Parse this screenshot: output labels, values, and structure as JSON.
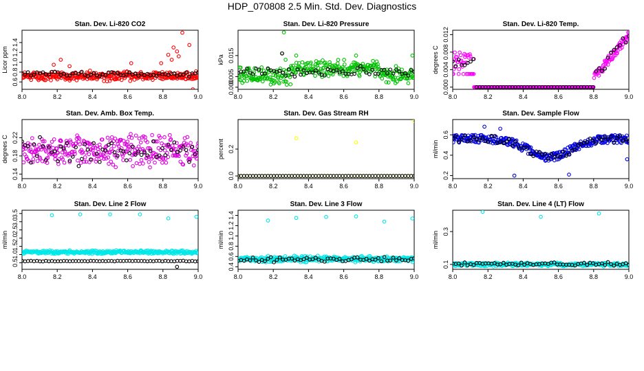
{
  "main_title": "HDP_070808  2.5 Min. Std. Dev. Diagnostics",
  "chart_data": [
    {
      "type": "scatter",
      "title": "Stan. Dev. Li-820 CO2",
      "ylabel": "Licor ppm",
      "xlim": [
        8.0,
        9.0
      ],
      "ylim": [
        0.45,
        1.65
      ],
      "xticks": [
        "8.0",
        "8.2",
        "8.4",
        "8.6",
        "8.8",
        "9.0"
      ],
      "yticks": [
        "0.6",
        "0.8",
        "1.0",
        "1.2",
        "1.4"
      ],
      "color": "#ff0000",
      "series": [
        {
          "name": "colored",
          "gen": {
            "base": 0.72,
            "spread": 0.08,
            "n": 330,
            "seed": 11,
            "outliers": [
              [
                8.22,
                1.05
              ],
              [
                8.83,
                1.15
              ],
              [
                8.86,
                1.3
              ],
              [
                8.88,
                1.22
              ],
              [
                8.91,
                1.6
              ],
              [
                8.95,
                1.35
              ],
              [
                8.79,
                0.98
              ],
              [
                8.85,
                1.05
              ],
              [
                8.89,
                1.12
              ],
              [
                8.97,
                0.45
              ],
              [
                8.18,
                0.95
              ],
              [
                8.62,
                0.98
              ],
              [
                8.27,
                0.92
              ]
            ]
          }
        },
        {
          "name": "black",
          "gen": {
            "base": 0.76,
            "spread": 0.05,
            "n": 60,
            "seed": 12,
            "outliers": []
          }
        }
      ]
    },
    {
      "type": "scatter",
      "title": "Stan. Dev. Li-820 Pressure",
      "ylabel": "kPa",
      "xlim": [
        8.0,
        9.0
      ],
      "ylim": [
        -0.001,
        0.027
      ],
      "xticks": [
        "8.0",
        "8.2",
        "8.4",
        "8.6",
        "8.8",
        "9.0"
      ],
      "yticks": [
        "0.000",
        "0.005",
        "0.015"
      ],
      "color": "#00c000",
      "series": [
        {
          "name": "colored",
          "gen": {
            "base": 0.0055,
            "spread": 0.0035,
            "n": 330,
            "seed": 21,
            "hump": [
              8.3,
              8.8,
              0.0035
            ],
            "outliers": [
              [
                8.26,
                0.026
              ],
              [
                8.25,
                0.016
              ],
              [
                8.33,
                0.015
              ],
              [
                8.67,
                0.015
              ],
              [
                8.99,
                0.015
              ],
              [
                8.27,
                0.013
              ]
            ]
          }
        },
        {
          "name": "black",
          "gen": {
            "base": 0.0075,
            "spread": 0.002,
            "n": 60,
            "seed": 22,
            "outliers": [
              [
                8.25,
                0.016
              ]
            ]
          }
        }
      ]
    },
    {
      "type": "scatter",
      "title": "Stan. Dev. Li-820 Temp.",
      "ylabel": "degrees C",
      "xlim": [
        8.0,
        9.0
      ],
      "ylim": [
        -0.0005,
        0.013
      ],
      "xticks": [
        "8.0",
        "8.2",
        "8.4",
        "8.6",
        "8.8",
        "9.0"
      ],
      "yticks": [
        "0.000",
        "0.004",
        "0.008",
        "0.012"
      ],
      "color": "#ff00ff",
      "series": [
        {
          "name": "colored",
          "gen": {
            "base": 0.0,
            "spread": 0.0,
            "n": 330,
            "seed": 31,
            "ramp": true,
            "outliers": []
          }
        },
        {
          "name": "black",
          "gen": {
            "base": 0.0,
            "spread": 0.0,
            "n": 60,
            "seed": 32,
            "ramp": true,
            "outliers": []
          }
        }
      ]
    },
    {
      "type": "scatter",
      "title": "Stan. Dev. Amb. Box Temp.",
      "ylabel": "degrees C",
      "xlim": [
        8.0,
        9.0
      ],
      "ylim": [
        0.13,
        0.26
      ],
      "xticks": [
        "8.0",
        "8.2",
        "8.4",
        "8.6",
        "8.8",
        "9.0"
      ],
      "yticks": [
        "0.14",
        "0.18",
        "0.22"
      ],
      "color": "#e000e0",
      "series": [
        {
          "name": "colored",
          "gen": {
            "base": 0.19,
            "spread": 0.03,
            "n": 330,
            "seed": 41,
            "outliers": []
          }
        },
        {
          "name": "black",
          "gen": {
            "base": 0.19,
            "spread": 0.025,
            "n": 60,
            "seed": 42,
            "outliers": []
          }
        }
      ]
    },
    {
      "type": "scatter",
      "title": "Stan. Dev. Gas Stream RH",
      "ylabel": "percent",
      "xlim": [
        8.0,
        9.0
      ],
      "ylim": [
        -0.02,
        0.42
      ],
      "xticks": [
        "8.0",
        "8.2",
        "8.4",
        "8.6",
        "8.8",
        "9.0"
      ],
      "yticks": [
        "0.0",
        "0.2"
      ],
      "color": "#ffff00",
      "series": [
        {
          "name": "colored",
          "gen": {
            "base": 0.0,
            "spread": 0.0,
            "n": 60,
            "seed": 51,
            "outliers": [
              [
                8.33,
                0.28
              ],
              [
                8.67,
                0.25
              ],
              [
                9.0,
                0.41
              ],
              [
                8.0,
                0.0
              ]
            ]
          }
        },
        {
          "name": "black",
          "gen": {
            "base": 0.0,
            "spread": 0.0,
            "n": 60,
            "seed": 52,
            "outliers": []
          }
        }
      ]
    },
    {
      "type": "scatter",
      "title": "Stan. Dev. Sample Flow",
      "ylabel": "ml/min",
      "xlim": [
        8.0,
        9.0
      ],
      "ylim": [
        0.17,
        0.75
      ],
      "xticks": [
        "8.0",
        "8.2",
        "8.4",
        "8.6",
        "8.8",
        "9.0"
      ],
      "yticks": [
        "0.2",
        "0.4",
        "0.6"
      ],
      "color": "#0000e0",
      "series": [
        {
          "name": "colored",
          "gen": {
            "base": 0.0,
            "spread": 0.04,
            "n": 330,
            "seed": 61,
            "valley": true,
            "outliers": [
              [
                8.18,
                0.68
              ],
              [
                8.27,
                0.66
              ],
              [
                8.66,
                0.21
              ],
              [
                8.35,
                0.2
              ],
              [
                8.99,
                0.36
              ]
            ]
          }
        },
        {
          "name": "black",
          "gen": {
            "base": 0.0,
            "spread": 0.035,
            "n": 60,
            "seed": 62,
            "valley": true,
            "outliers": []
          }
        }
      ]
    },
    {
      "type": "scatter",
      "title": "Stan. Dev. Line 2 Flow",
      "ylabel": "ml/min",
      "xlim": [
        8.0,
        9.0
      ],
      "ylim": [
        0.1,
        3.7
      ],
      "xticks": [
        "8.0",
        "8.2",
        "8.4",
        "8.6",
        "8.8",
        "9.0"
      ],
      "yticks": [
        "0.5",
        "1.0",
        "1.5",
        "2.0",
        "2.5",
        "3.0",
        "3.5"
      ],
      "color": "#00e8e8",
      "series": [
        {
          "name": "colored",
          "gen": {
            "base": 1.15,
            "spread": 0.09,
            "n": 330,
            "seed": 71,
            "outliers": [
              [
                8.17,
                3.4
              ],
              [
                8.33,
                3.45
              ],
              [
                8.5,
                3.45
              ],
              [
                8.67,
                3.45
              ],
              [
                8.83,
                3.2
              ],
              [
                8.99,
                3.3
              ]
            ]
          }
        },
        {
          "name": "black",
          "gen": {
            "base": 0.6,
            "spread": 0.02,
            "n": 60,
            "seed": 72,
            "outliers": [
              [
                8.88,
                0.25
              ]
            ]
          }
        }
      ]
    },
    {
      "type": "scatter",
      "title": "Stan. Dev. Line 3 Flow",
      "ylabel": "ml/min",
      "xlim": [
        8.0,
        9.0
      ],
      "ylim": [
        0.35,
        1.5
      ],
      "xticks": [
        "8.0",
        "8.2",
        "8.4",
        "8.6",
        "8.8",
        "9.0"
      ],
      "yticks": [
        "0.4",
        "0.6",
        "0.8",
        "1.0",
        "1.2",
        "1.4"
      ],
      "color": "#00e8e8",
      "series": [
        {
          "name": "colored",
          "gen": {
            "base": 0.55,
            "spread": 0.05,
            "n": 330,
            "seed": 81,
            "outliers": [
              [
                8.17,
                1.3
              ],
              [
                8.33,
                1.35
              ],
              [
                8.5,
                1.37
              ],
              [
                8.67,
                1.38
              ],
              [
                8.83,
                1.28
              ],
              [
                8.99,
                1.34
              ]
            ]
          }
        },
        {
          "name": "black",
          "gen": {
            "base": 0.54,
            "spread": 0.04,
            "n": 60,
            "seed": 82,
            "outliers": []
          }
        }
      ]
    },
    {
      "type": "scatter",
      "title": "Stan. Dev. Line 4 (LT) Flow",
      "ylabel": "ml/min",
      "xlim": [
        8.0,
        9.0
      ],
      "ylim": [
        0.07,
        0.43
      ],
      "xticks": [
        "8.0",
        "8.2",
        "8.4",
        "8.6",
        "8.8",
        "9.0"
      ],
      "yticks": [
        "0.1",
        "0.3"
      ],
      "color": "#00e8e8",
      "series": [
        {
          "name": "colored",
          "gen": {
            "base": 0.1,
            "spread": 0.01,
            "n": 330,
            "seed": 91,
            "outliers": [
              [
                8.17,
                0.42
              ],
              [
                8.5,
                0.39
              ],
              [
                8.83,
                0.41
              ]
            ]
          }
        },
        {
          "name": "black",
          "gen": {
            "base": 0.102,
            "spread": 0.01,
            "n": 60,
            "seed": 92,
            "outliers": []
          }
        }
      ]
    }
  ]
}
